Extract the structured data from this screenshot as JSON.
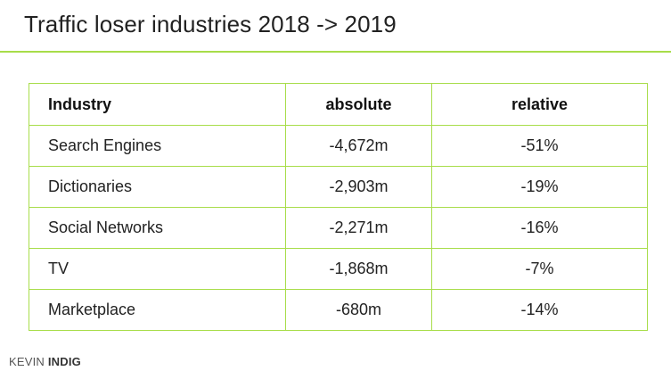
{
  "title": "Traffic loser industries 2018 -> 2019",
  "table": {
    "headers": [
      "Industry",
      "absolute",
      "relative"
    ],
    "rows": [
      [
        "Search Engines",
        "-4,672m",
        "-51%"
      ],
      [
        "Dictionaries",
        "-2,903m",
        "-19%"
      ],
      [
        "Social Networks",
        "-2,271m",
        "-16%"
      ],
      [
        "TV",
        "-1,868m",
        "-7%"
      ],
      [
        "Marketplace",
        "-680m",
        "-14%"
      ]
    ]
  },
  "brand": {
    "first": "KEVIN",
    "last": "INDIG"
  },
  "colors": {
    "accent": "#a8dd4a"
  }
}
